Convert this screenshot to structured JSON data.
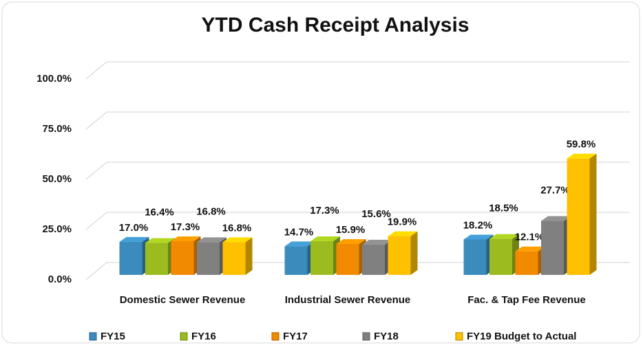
{
  "chart_data": {
    "type": "bar3d",
    "title": "YTD Cash Receipt Analysis",
    "categories": [
      "Domestic Sewer Revenue",
      "Industrial Sewer Revenue",
      "Fac. & Tap Fee Revenue"
    ],
    "series": [
      {
        "name": "FY15",
        "color": "#3b8bbd",
        "values": [
          17.0,
          14.7,
          18.2
        ],
        "value_labels": [
          "17.0%",
          "14.7%",
          "18.2%"
        ]
      },
      {
        "name": "FY16",
        "color": "#9bbb1e",
        "values": [
          16.4,
          17.3,
          18.5
        ],
        "value_labels": [
          "16.4%",
          "17.3%",
          "18.5%"
        ]
      },
      {
        "name": "FY17",
        "color": "#f28a00",
        "values": [
          17.3,
          15.9,
          12.1
        ],
        "value_labels": [
          "17.3%",
          "15.9%",
          "12.1%"
        ]
      },
      {
        "name": "FY18",
        "color": "#808080",
        "values": [
          16.8,
          15.6,
          27.7
        ],
        "value_labels": [
          "16.8%",
          "15.6%",
          "27.7%"
        ]
      },
      {
        "name": "FY19 Budget to Actual",
        "color": "#ffc000",
        "values": [
          16.8,
          19.9,
          59.8
        ],
        "value_labels": [
          "16.8%",
          "19.9%",
          "59.8%"
        ]
      }
    ],
    "ylim": [
      0,
      100
    ],
    "yticks": [
      {
        "value": 0,
        "label": "0.0%"
      },
      {
        "value": 25,
        "label": "25.0%"
      },
      {
        "value": 50,
        "label": "50.0%"
      },
      {
        "value": 75,
        "label": "75.0%"
      },
      {
        "value": 100,
        "label": "100.0%"
      }
    ],
    "grid": true,
    "legend": "bottom"
  }
}
